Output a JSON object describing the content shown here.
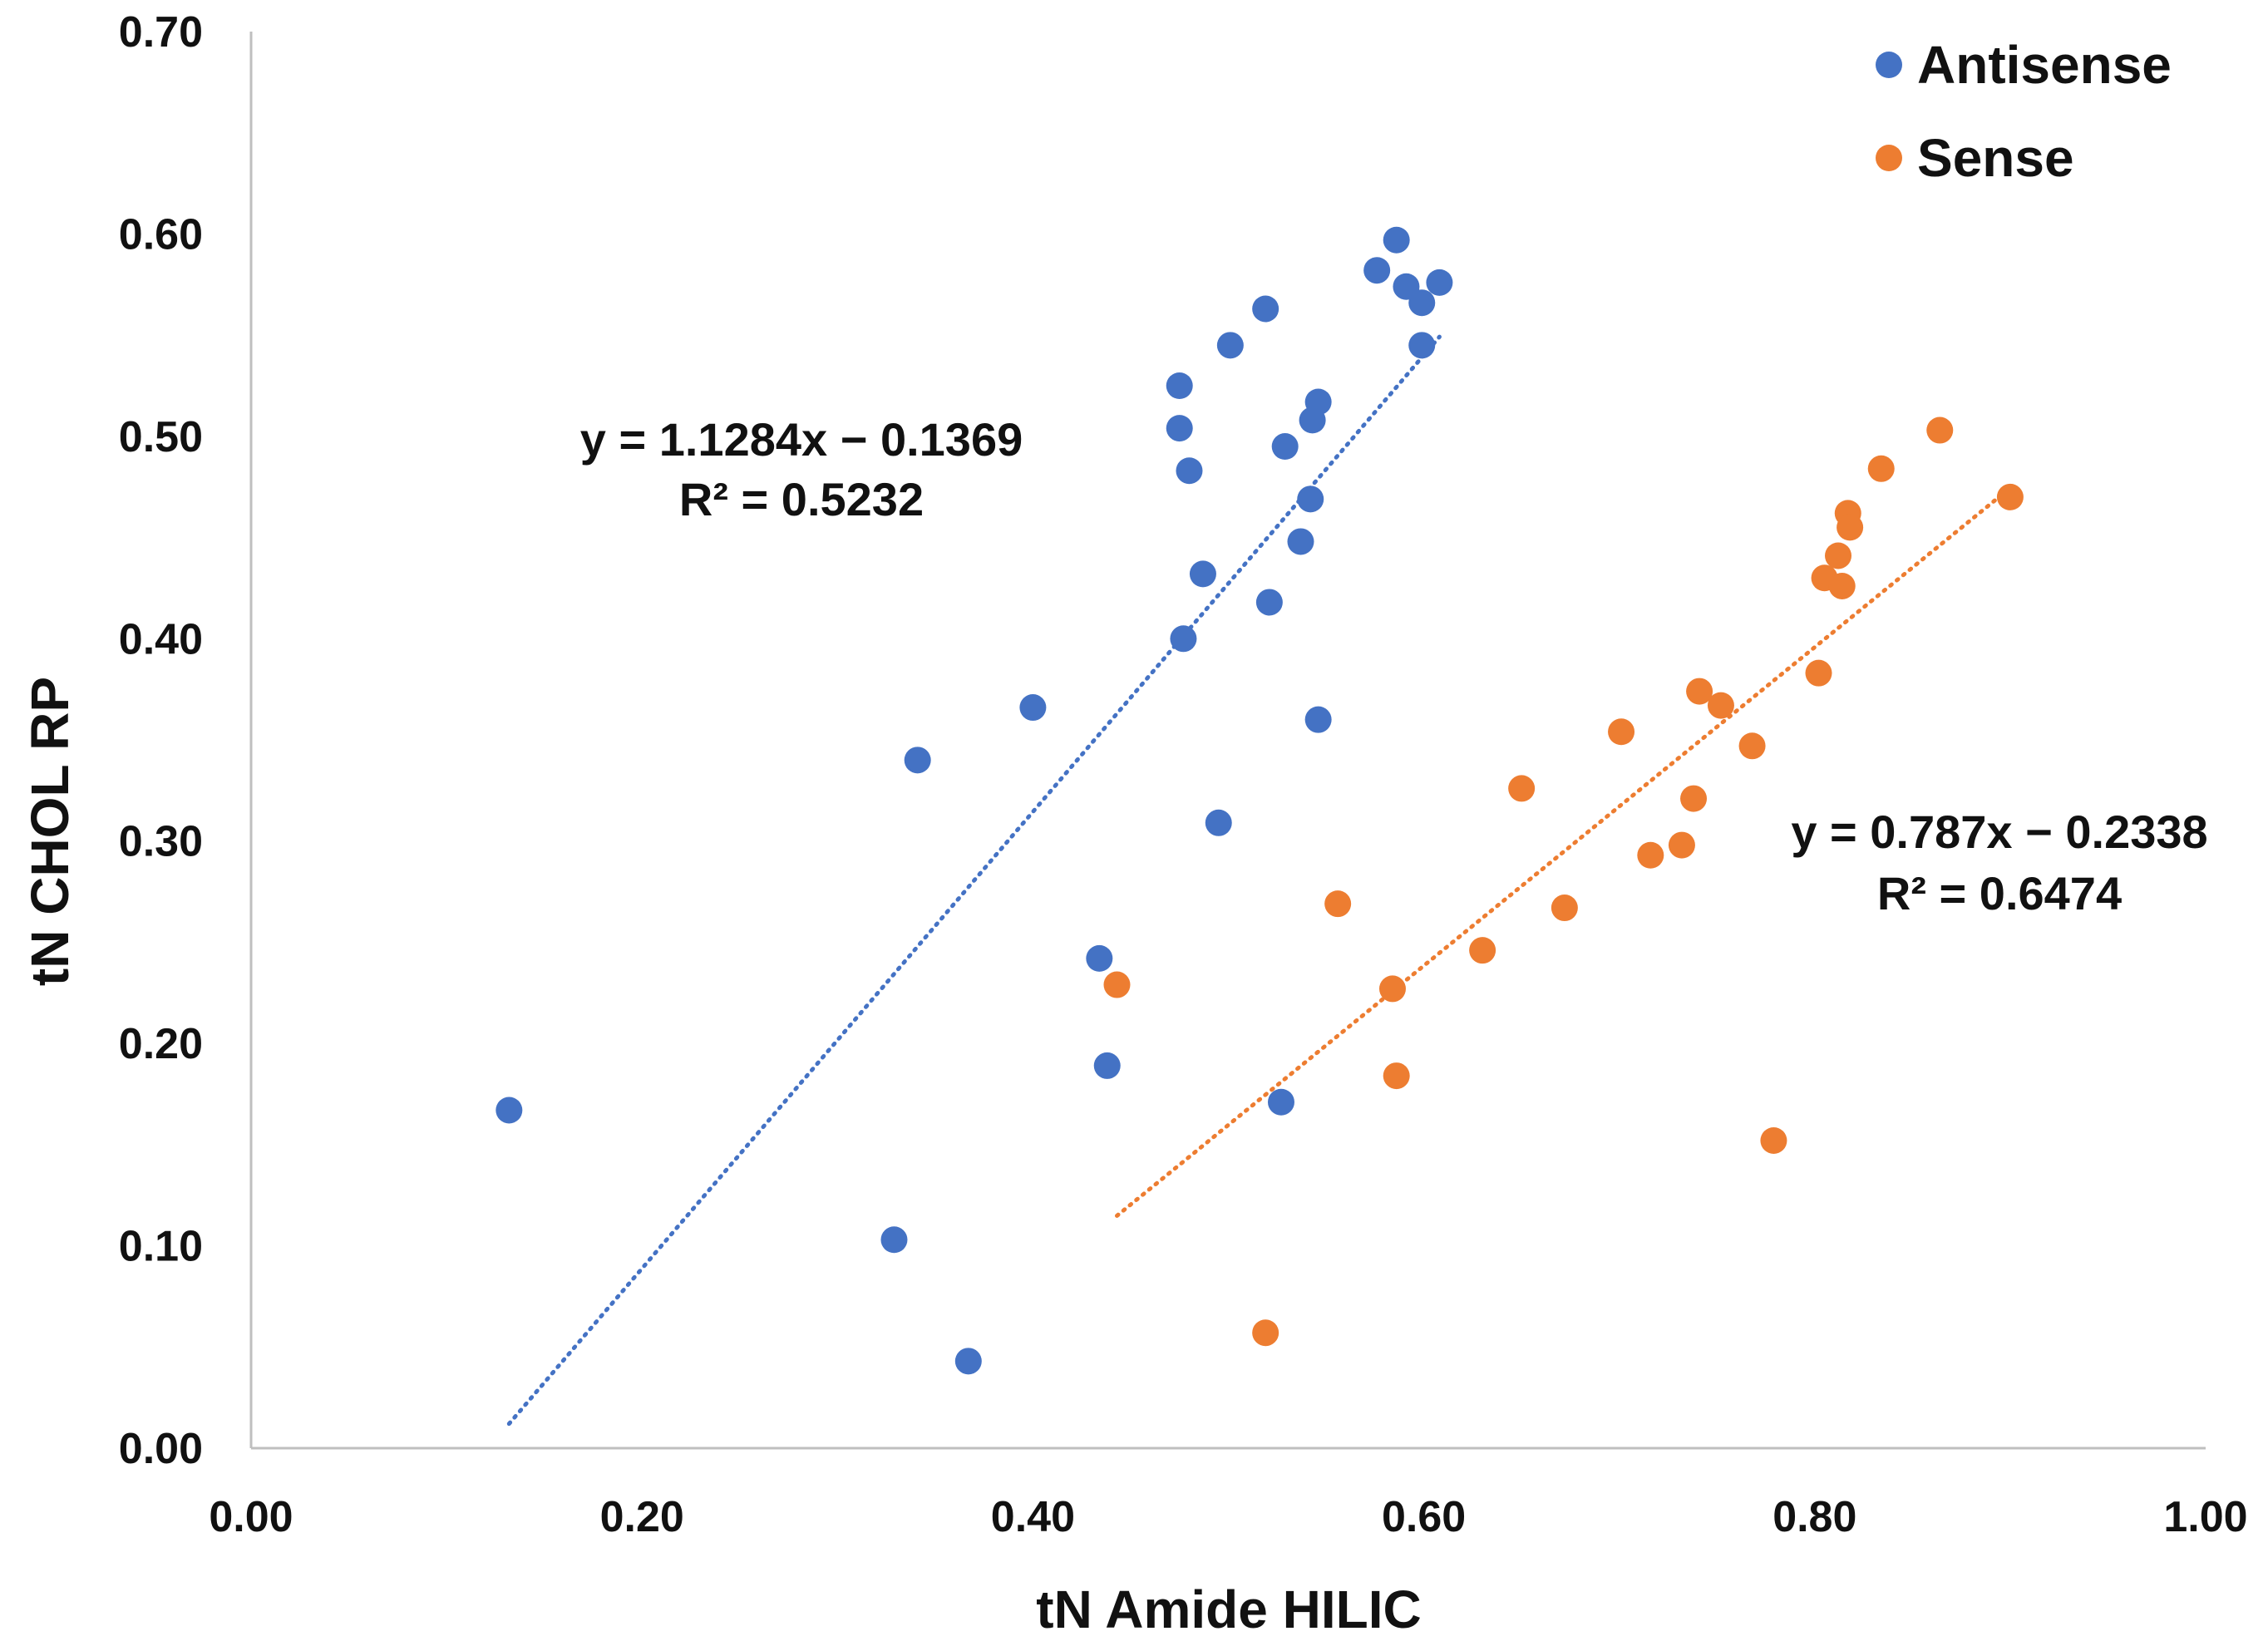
{
  "chart_data": {
    "type": "scatter",
    "xlabel": "tN Amide HILIC",
    "ylabel": "tN CHOL RP",
    "xlim": [
      0,
      1
    ],
    "ylim": [
      0,
      0.7
    ],
    "x_ticks": [
      "0.00",
      "0.20",
      "0.40",
      "0.60",
      "0.80",
      "1.00"
    ],
    "y_ticks": [
      "0.00",
      "0.10",
      "0.20",
      "0.30",
      "0.40",
      "0.50",
      "0.60",
      "0.70"
    ],
    "grid": false,
    "legend_position": "top-right",
    "series": [
      {
        "name": "Antisense",
        "color": "#4472C4",
        "points": [
          [
            0.132,
            0.167
          ],
          [
            0.329,
            0.103
          ],
          [
            0.341,
            0.34
          ],
          [
            0.367,
            0.043
          ],
          [
            0.4,
            0.366
          ],
          [
            0.434,
            0.242
          ],
          [
            0.438,
            0.189
          ],
          [
            0.475,
            0.525
          ],
          [
            0.475,
            0.504
          ],
          [
            0.477,
            0.4
          ],
          [
            0.48,
            0.483
          ],
          [
            0.487,
            0.432
          ],
          [
            0.495,
            0.309
          ],
          [
            0.501,
            0.545
          ],
          [
            0.519,
            0.563
          ],
          [
            0.521,
            0.418
          ],
          [
            0.527,
            0.171
          ],
          [
            0.529,
            0.495
          ],
          [
            0.537,
            0.448
          ],
          [
            0.542,
            0.469
          ],
          [
            0.543,
            0.508
          ],
          [
            0.546,
            0.517
          ],
          [
            0.546,
            0.36
          ],
          [
            0.576,
            0.582
          ],
          [
            0.586,
            0.597
          ],
          [
            0.591,
            0.574
          ],
          [
            0.599,
            0.566
          ],
          [
            0.599,
            0.545
          ],
          [
            0.608,
            0.576
          ]
        ],
        "trendline": {
          "x": [
            0.132,
            0.608
          ],
          "equation": "y = 1.1284x − 0.1369",
          "r2": "R² = 0.5232"
        }
      },
      {
        "name": "Sense",
        "color": "#ED7D31",
        "points": [
          [
            0.443,
            0.229
          ],
          [
            0.519,
            0.057
          ],
          [
            0.556,
            0.269
          ],
          [
            0.584,
            0.227
          ],
          [
            0.586,
            0.184
          ],
          [
            0.63,
            0.246
          ],
          [
            0.65,
            0.326
          ],
          [
            0.672,
            0.267
          ],
          [
            0.701,
            0.354
          ],
          [
            0.716,
            0.293
          ],
          [
            0.732,
            0.298
          ],
          [
            0.738,
            0.321
          ],
          [
            0.741,
            0.374
          ],
          [
            0.752,
            0.367
          ],
          [
            0.768,
            0.347
          ],
          [
            0.779,
            0.152
          ],
          [
            0.802,
            0.383
          ],
          [
            0.805,
            0.43
          ],
          [
            0.812,
            0.441
          ],
          [
            0.814,
            0.426
          ],
          [
            0.817,
            0.462
          ],
          [
            0.818,
            0.455
          ],
          [
            0.834,
            0.484
          ],
          [
            0.864,
            0.503
          ],
          [
            0.9,
            0.47
          ]
        ],
        "trendline": {
          "x": [
            0.443,
            0.9
          ],
          "equation": "y = 0.787x − 0.2338",
          "r2": "R² = 0.6474"
        }
      }
    ]
  }
}
